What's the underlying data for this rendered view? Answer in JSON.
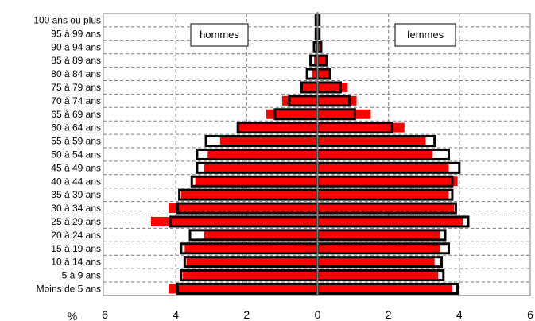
{
  "chart_data": {
    "type": "bar",
    "orientation": "horizontal",
    "layout": "population-pyramid",
    "categories": [
      "100 ans ou plus",
      "95 à 99 ans",
      "90 à 94 ans",
      "85 à 89 ans",
      "80 à 84 ans",
      "75 à 79 ans",
      "70 à 74 ans",
      "65 à 69 ans",
      "60 à 64 ans",
      "55 à 59 ans",
      "50 à 54 ans",
      "45 à 49 ans",
      "40 à 44 ans",
      "35 à 39 ans",
      "30 à 34 ans",
      "25 à 29 ans",
      "20 à 24 ans",
      "15 à 19 ans",
      "10 à 14 ans",
      "5 à 9 ans",
      "Moins de 5 ans"
    ],
    "legend": {
      "left": "hommes",
      "right": "femmes"
    },
    "unit_label": "%",
    "x_ticks": [
      "6",
      "4",
      "2",
      "0",
      "2",
      "4",
      "6"
    ],
    "xlim": [
      -6,
      6
    ],
    "grid": true,
    "series": [
      {
        "side": "hommes",
        "style": "filled",
        "color": "#ff0000",
        "values": [
          0.0,
          0.02,
          0.05,
          0.1,
          0.15,
          0.5,
          1.0,
          1.45,
          2.25,
          2.75,
          3.1,
          3.2,
          3.45,
          3.85,
          4.2,
          4.7,
          3.2,
          3.75,
          3.7,
          3.8,
          4.2
        ]
      },
      {
        "side": "hommes",
        "style": "outline",
        "color": "#000000",
        "values": [
          0.05,
          0.05,
          0.1,
          0.2,
          0.3,
          0.45,
          0.8,
          1.2,
          2.25,
          3.15,
          3.4,
          3.4,
          3.55,
          3.9,
          3.95,
          4.15,
          3.6,
          3.85,
          3.75,
          3.85,
          3.95
        ]
      },
      {
        "side": "femmes",
        "style": "filled",
        "color": "#ff0000",
        "values": [
          0.0,
          0.02,
          0.1,
          0.25,
          0.35,
          0.85,
          1.1,
          1.5,
          2.45,
          3.05,
          3.25,
          3.7,
          3.95,
          3.7,
          3.85,
          4.1,
          3.45,
          3.45,
          3.3,
          3.4,
          3.8
        ]
      },
      {
        "side": "femmes",
        "style": "outline",
        "color": "#000000",
        "values": [
          0.05,
          0.05,
          0.1,
          0.25,
          0.35,
          0.65,
          0.9,
          1.05,
          2.1,
          3.3,
          3.7,
          4.0,
          3.8,
          3.8,
          3.9,
          4.25,
          3.6,
          3.7,
          3.5,
          3.55,
          3.95
        ]
      }
    ]
  }
}
